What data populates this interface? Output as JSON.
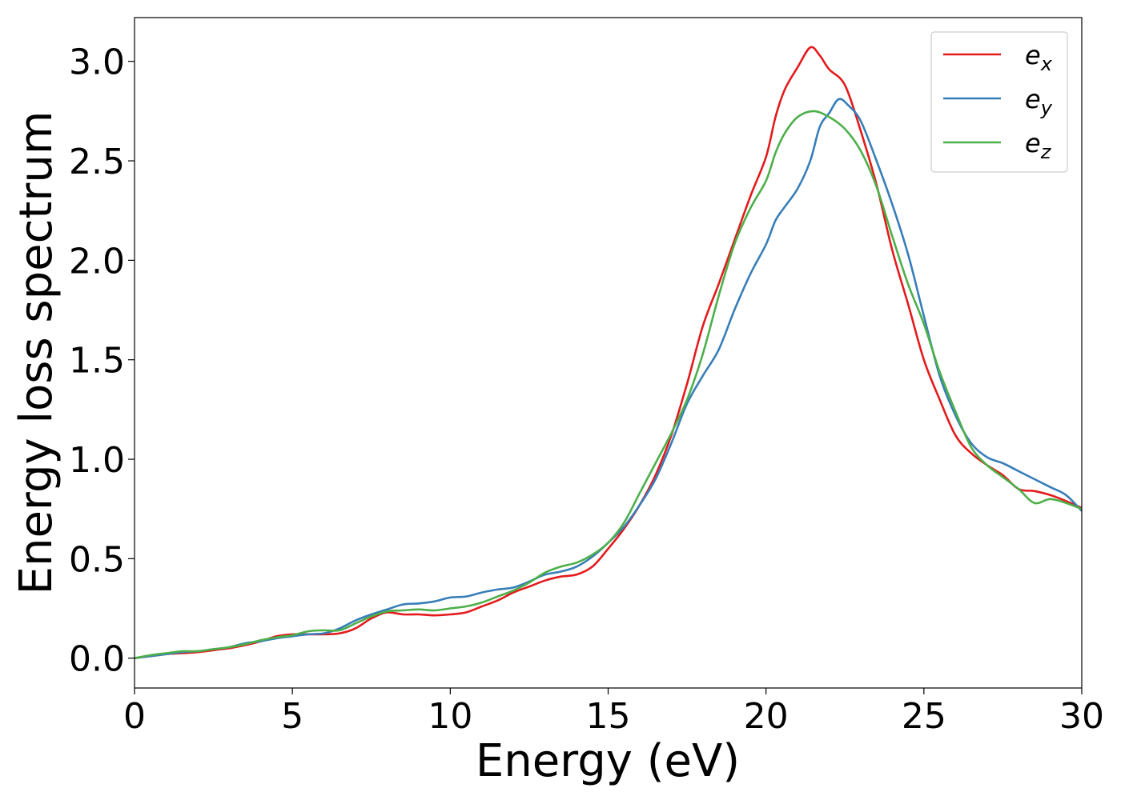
{
  "chart_data": {
    "type": "line",
    "title": "",
    "xlabel": "Energy (eV)",
    "ylabel": "Energy loss spectrum",
    "xlim": [
      0,
      30
    ],
    "ylim": [
      -0.15,
      3.22
    ],
    "xticks": [
      0,
      5,
      10,
      15,
      20,
      25,
      30
    ],
    "yticks": [
      0.0,
      0.5,
      1.0,
      1.5,
      2.0,
      2.5,
      3.0
    ],
    "xtick_labels": [
      "0",
      "5",
      "10",
      "15",
      "20",
      "25",
      "30"
    ],
    "ytick_labels": [
      "0.0",
      "0.5",
      "1.0",
      "1.5",
      "2.0",
      "2.5",
      "3.0"
    ],
    "grid": false,
    "legend": "top-right",
    "series": [
      {
        "name": "e",
        "subscript": "x",
        "color": "#e41a1c",
        "points": [
          [
            0,
            0.0
          ],
          [
            0.5,
            0.01
          ],
          [
            1,
            0.02
          ],
          [
            1.5,
            0.025
          ],
          [
            2,
            0.03
          ],
          [
            2.5,
            0.04
          ],
          [
            3,
            0.05
          ],
          [
            3.5,
            0.065
          ],
          [
            4,
            0.085
          ],
          [
            4.5,
            0.11
          ],
          [
            5,
            0.12
          ],
          [
            5.5,
            0.12
          ],
          [
            6,
            0.12
          ],
          [
            6.5,
            0.125
          ],
          [
            7,
            0.15
          ],
          [
            7.5,
            0.2
          ],
          [
            8,
            0.23
          ],
          [
            8.5,
            0.22
          ],
          [
            9,
            0.22
          ],
          [
            9.5,
            0.215
          ],
          [
            10,
            0.22
          ],
          [
            10.5,
            0.23
          ],
          [
            11,
            0.26
          ],
          [
            11.5,
            0.29
          ],
          [
            12,
            0.33
          ],
          [
            12.5,
            0.36
          ],
          [
            13,
            0.39
          ],
          [
            13.5,
            0.41
          ],
          [
            14,
            0.42
          ],
          [
            14.5,
            0.46
          ],
          [
            15,
            0.55
          ],
          [
            15.5,
            0.65
          ],
          [
            16,
            0.77
          ],
          [
            16.5,
            0.92
          ],
          [
            17,
            1.12
          ],
          [
            17.5,
            1.38
          ],
          [
            18,
            1.67
          ],
          [
            18.5,
            1.88
          ],
          [
            19,
            2.1
          ],
          [
            19.5,
            2.32
          ],
          [
            20,
            2.52
          ],
          [
            20.3,
            2.72
          ],
          [
            20.6,
            2.86
          ],
          [
            21,
            2.97
          ],
          [
            21.4,
            3.07
          ],
          [
            21.7,
            3.03
          ],
          [
            22,
            2.96
          ],
          [
            22.5,
            2.88
          ],
          [
            23,
            2.65
          ],
          [
            23.5,
            2.38
          ],
          [
            24,
            2.05
          ],
          [
            24.5,
            1.78
          ],
          [
            25,
            1.5
          ],
          [
            25.5,
            1.3
          ],
          [
            26,
            1.12
          ],
          [
            26.5,
            1.03
          ],
          [
            27,
            0.97
          ],
          [
            27.5,
            0.92
          ],
          [
            28,
            0.85
          ],
          [
            28.5,
            0.84
          ],
          [
            29,
            0.82
          ],
          [
            29.5,
            0.79
          ],
          [
            30,
            0.755
          ]
        ]
      },
      {
        "name": "e",
        "subscript": "y",
        "color": "#377eb8",
        "points": [
          [
            0,
            0.0
          ],
          [
            0.5,
            0.01
          ],
          [
            1,
            0.02
          ],
          [
            1.5,
            0.03
          ],
          [
            2,
            0.035
          ],
          [
            2.5,
            0.045
          ],
          [
            3,
            0.055
          ],
          [
            3.5,
            0.075
          ],
          [
            4,
            0.085
          ],
          [
            4.5,
            0.1
          ],
          [
            5,
            0.11
          ],
          [
            5.5,
            0.12
          ],
          [
            6,
            0.125
          ],
          [
            6.5,
            0.15
          ],
          [
            7,
            0.19
          ],
          [
            7.5,
            0.22
          ],
          [
            8,
            0.245
          ],
          [
            8.5,
            0.27
          ],
          [
            9,
            0.275
          ],
          [
            9.5,
            0.285
          ],
          [
            10,
            0.305
          ],
          [
            10.5,
            0.31
          ],
          [
            11,
            0.33
          ],
          [
            11.5,
            0.345
          ],
          [
            12,
            0.355
          ],
          [
            12.5,
            0.385
          ],
          [
            13,
            0.42
          ],
          [
            13.5,
            0.435
          ],
          [
            14,
            0.46
          ],
          [
            14.5,
            0.51
          ],
          [
            15,
            0.58
          ],
          [
            15.5,
            0.66
          ],
          [
            16,
            0.77
          ],
          [
            16.5,
            0.9
          ],
          [
            17,
            1.08
          ],
          [
            17.5,
            1.28
          ],
          [
            18,
            1.42
          ],
          [
            18.5,
            1.55
          ],
          [
            19,
            1.75
          ],
          [
            19.5,
            1.93
          ],
          [
            20,
            2.08
          ],
          [
            20.3,
            2.2
          ],
          [
            20.6,
            2.27
          ],
          [
            21,
            2.36
          ],
          [
            21.4,
            2.5
          ],
          [
            21.7,
            2.67
          ],
          [
            22,
            2.74
          ],
          [
            22.3,
            2.81
          ],
          [
            22.6,
            2.78
          ],
          [
            23,
            2.7
          ],
          [
            23.5,
            2.5
          ],
          [
            24,
            2.28
          ],
          [
            24.5,
            2.03
          ],
          [
            25,
            1.72
          ],
          [
            25.5,
            1.42
          ],
          [
            26,
            1.22
          ],
          [
            26.5,
            1.08
          ],
          [
            27,
            1.01
          ],
          [
            27.5,
            0.98
          ],
          [
            28,
            0.94
          ],
          [
            28.5,
            0.9
          ],
          [
            29,
            0.86
          ],
          [
            29.5,
            0.82
          ],
          [
            30,
            0.74
          ]
        ]
      },
      {
        "name": "e",
        "subscript": "z",
        "color": "#4daf4a",
        "points": [
          [
            0,
            0.0
          ],
          [
            0.5,
            0.015
          ],
          [
            1,
            0.025
          ],
          [
            1.5,
            0.035
          ],
          [
            2,
            0.035
          ],
          [
            2.5,
            0.045
          ],
          [
            3,
            0.055
          ],
          [
            3.5,
            0.07
          ],
          [
            4,
            0.09
          ],
          [
            4.5,
            0.105
          ],
          [
            5,
            0.115
          ],
          [
            5.5,
            0.135
          ],
          [
            6,
            0.14
          ],
          [
            6.5,
            0.14
          ],
          [
            7,
            0.175
          ],
          [
            7.5,
            0.21
          ],
          [
            8,
            0.235
          ],
          [
            8.5,
            0.24
          ],
          [
            9,
            0.245
          ],
          [
            9.5,
            0.24
          ],
          [
            10,
            0.25
          ],
          [
            10.5,
            0.26
          ],
          [
            11,
            0.28
          ],
          [
            11.5,
            0.31
          ],
          [
            12,
            0.34
          ],
          [
            12.5,
            0.38
          ],
          [
            13,
            0.43
          ],
          [
            13.5,
            0.46
          ],
          [
            14,
            0.48
          ],
          [
            14.5,
            0.52
          ],
          [
            15,
            0.58
          ],
          [
            15.5,
            0.68
          ],
          [
            16,
            0.83
          ],
          [
            16.5,
            0.98
          ],
          [
            17,
            1.13
          ],
          [
            17.5,
            1.3
          ],
          [
            18,
            1.53
          ],
          [
            18.5,
            1.82
          ],
          [
            19,
            2.08
          ],
          [
            19.5,
            2.26
          ],
          [
            20,
            2.4
          ],
          [
            20.3,
            2.54
          ],
          [
            20.6,
            2.64
          ],
          [
            21,
            2.72
          ],
          [
            21.5,
            2.75
          ],
          [
            22,
            2.72
          ],
          [
            22.5,
            2.66
          ],
          [
            23,
            2.55
          ],
          [
            23.5,
            2.37
          ],
          [
            24,
            2.12
          ],
          [
            24.5,
            1.88
          ],
          [
            25,
            1.68
          ],
          [
            25.5,
            1.44
          ],
          [
            26,
            1.24
          ],
          [
            26.5,
            1.06
          ],
          [
            27,
            0.97
          ],
          [
            27.5,
            0.91
          ],
          [
            28,
            0.85
          ],
          [
            28.5,
            0.78
          ],
          [
            29,
            0.8
          ],
          [
            29.5,
            0.78
          ],
          [
            30,
            0.75
          ]
        ]
      }
    ]
  }
}
